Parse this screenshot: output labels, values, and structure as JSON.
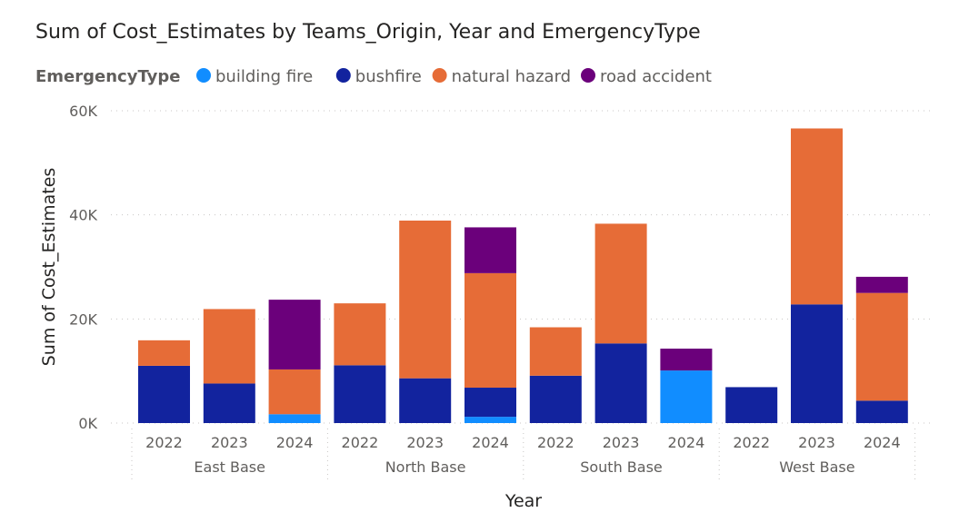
{
  "chart_data": {
    "type": "bar",
    "stacked": true,
    "title": "Sum of Cost_Estimates by Teams_Origin, Year and EmergencyType",
    "xlabel": "Year",
    "ylabel": "Sum of Cost_Estimates",
    "ylim": [
      0,
      60000
    ],
    "yticks": [
      "0K",
      "20K",
      "40K",
      "60K"
    ],
    "ytick_values": [
      0,
      20000,
      40000,
      60000
    ],
    "grid": true,
    "legend": {
      "title": "EmergencyType",
      "position": "top-left"
    },
    "groups": [
      {
        "name": "East Base",
        "categories": [
          "2022",
          "2023",
          "2024"
        ]
      },
      {
        "name": "North Base",
        "categories": [
          "2022",
          "2023",
          "2024"
        ]
      },
      {
        "name": "South Base",
        "categories": [
          "2022",
          "2023",
          "2024"
        ]
      },
      {
        "name": "West Base",
        "categories": [
          "2022",
          "2023",
          "2024"
        ]
      }
    ],
    "series": [
      {
        "name": "building fire",
        "color": "#118DFF",
        "values": [
          0,
          0,
          1700,
          0,
          0,
          1200,
          0,
          0,
          10100,
          0,
          0,
          0
        ]
      },
      {
        "name": "bushfire",
        "color": "#12239E",
        "values": [
          11000,
          7600,
          0,
          11100,
          8600,
          5600,
          9100,
          15300,
          0,
          6900,
          22800,
          4300
        ]
      },
      {
        "name": "natural hazard",
        "color": "#E66C37",
        "values": [
          4900,
          14300,
          8600,
          11900,
          30300,
          22000,
          9300,
          23000,
          0,
          0,
          33800,
          20700
        ]
      },
      {
        "name": "road accident",
        "color": "#6B007B",
        "values": [
          0,
          0,
          13400,
          0,
          0,
          8800,
          0,
          0,
          4200,
          0,
          0,
          3100
        ]
      }
    ]
  }
}
